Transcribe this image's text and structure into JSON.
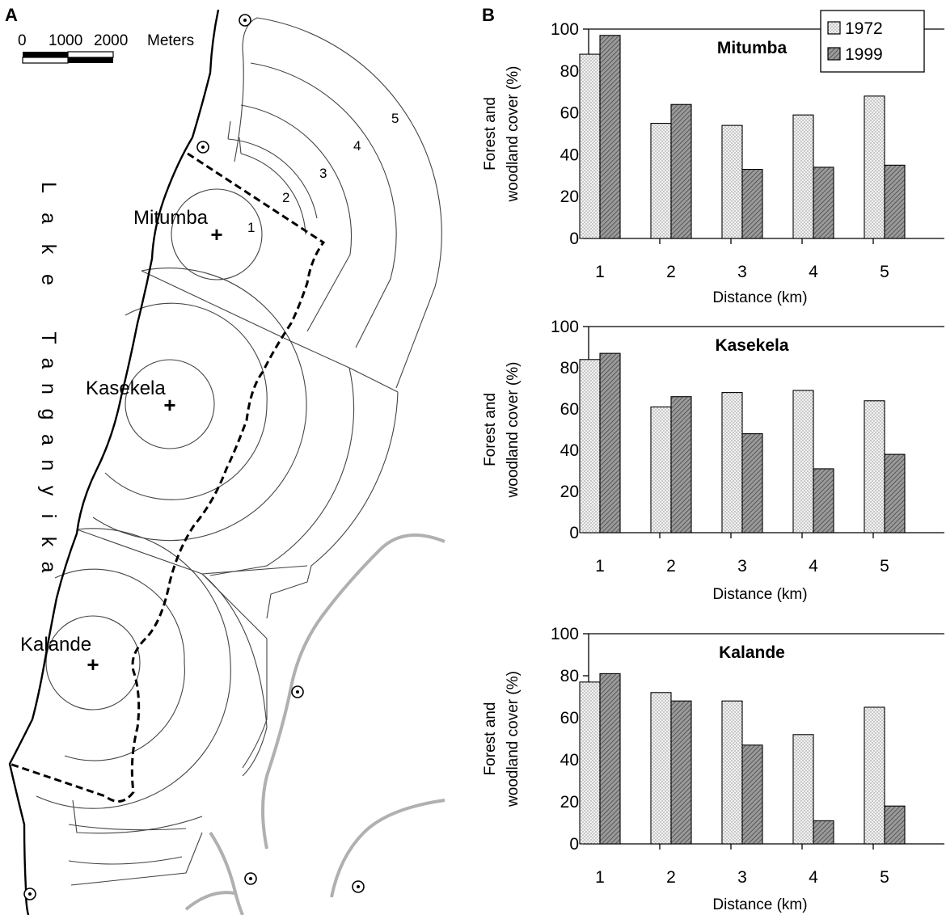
{
  "panels": {
    "map_letter": "A",
    "charts_letter": "B"
  },
  "map": {
    "scale_bar": {
      "tick_labels": [
        "0",
        "1000",
        "2000"
      ],
      "unit": "Meters"
    },
    "lake_name": "Lake Tanganyika",
    "community_labels": [
      "Mitumba",
      "Kasekela",
      "Kalande"
    ],
    "ring_numbers": [
      "1",
      "2",
      "3",
      "4",
      "5"
    ]
  },
  "legend": {
    "entries": [
      {
        "label": "1972",
        "pattern": "dotted",
        "color": "#e8e8e8"
      },
      {
        "label": "1999",
        "pattern": "hatched",
        "color": "#8c8c8c"
      }
    ]
  },
  "chart_data": [
    {
      "type": "bar",
      "title": "Mitumba",
      "xlabel": "Distance (km)",
      "ylabel": "Forest and woodland cover (%)",
      "categories": [
        "1",
        "2",
        "3",
        "4",
        "5"
      ],
      "ylim": [
        0,
        100
      ],
      "yticks": [
        0,
        20,
        40,
        60,
        80,
        100
      ],
      "series": [
        {
          "name": "1972",
          "values": [
            88,
            55,
            54,
            59,
            68
          ]
        },
        {
          "name": "1999",
          "values": [
            97,
            64,
            33,
            34,
            35
          ]
        }
      ],
      "legend_position": "top-right"
    },
    {
      "type": "bar",
      "title": "Kasekela",
      "xlabel": "Distance (km)",
      "ylabel": "Forest and woodland cover (%)",
      "categories": [
        "1",
        "2",
        "3",
        "4",
        "5"
      ],
      "ylim": [
        0,
        100
      ],
      "yticks": [
        0,
        20,
        40,
        60,
        80,
        100
      ],
      "series": [
        {
          "name": "1972",
          "values": [
            84,
            61,
            68,
            69,
            64
          ]
        },
        {
          "name": "1999",
          "values": [
            87,
            66,
            48,
            31,
            38
          ]
        }
      ]
    },
    {
      "type": "bar",
      "title": "Kalande",
      "xlabel": "Distance (km)",
      "ylabel": "Forest and woodland cover (%)",
      "categories": [
        "1",
        "2",
        "3",
        "4",
        "5"
      ],
      "ylim": [
        0,
        100
      ],
      "yticks": [
        0,
        20,
        40,
        60,
        80,
        100
      ],
      "series": [
        {
          "name": "1972",
          "values": [
            77,
            72,
            68,
            52,
            65
          ]
        },
        {
          "name": "1999",
          "values": [
            81,
            68,
            47,
            11,
            18
          ]
        }
      ]
    }
  ]
}
